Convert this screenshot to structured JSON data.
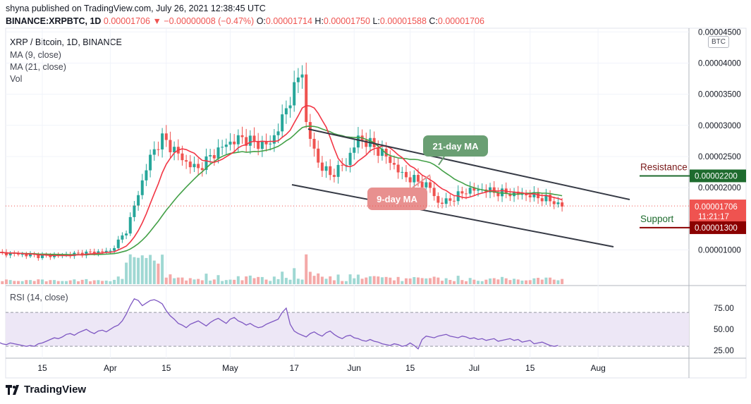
{
  "header": {
    "published": "shyna published on TradingView.com, July 26, 2021 12:38:45 UTC",
    "symbol": "BINANCE:XRPBTC, 1D",
    "last": "0.00001706",
    "change": "−0.00000008 (−0.47%)",
    "o_label": "O:",
    "o": "0.00001714",
    "h_label": "H:",
    "h": "0.00001750",
    "l_label": "L:",
    "l": "0.00001588",
    "c_label": "C:",
    "c": "0.00001706",
    "down_arrow": "▼"
  },
  "legend": {
    "title": "XRP / Bitcoin, 1D, BINANCE",
    "ma9": "MA (9, close)",
    "ma21": "MA (21, close)",
    "vol": "Vol"
  },
  "rsi_label": "RSI (14, close)",
  "currency_badge": "BTC",
  "footer": {
    "brand": "TradingView"
  },
  "colors": {
    "up": "#26a69a",
    "down": "#ef5350",
    "ma9": "#f23645",
    "ma21": "#43a047",
    "rsi": "#7e57c2",
    "rsi_band": "#ede7f6",
    "channel": "#363a45"
  },
  "chart_data": {
    "type": "candlestick",
    "title": "XRP / Bitcoin, 1D, BINANCE",
    "y_axis": {
      "ticks": [
        "0.00004500",
        "0.00004000",
        "0.00003500",
        "0.00003000",
        "0.00002500",
        "0.00002000",
        "0.00001000"
      ],
      "tick_values": [
        4.5e-05,
        4e-05,
        3.5e-05,
        3e-05,
        2.5e-05,
        2e-05,
        1e-05
      ],
      "range": [
        4.5e-06,
        4.56e-05
      ]
    },
    "x_axis": {
      "ticks": [
        "15",
        "Apr",
        "15",
        "May",
        "17",
        "Jun",
        "15",
        "Jul",
        "15",
        "Aug"
      ],
      "tick_day_index": [
        14,
        31,
        45,
        61,
        77,
        92,
        106,
        122,
        136,
        153
      ]
    },
    "price_label": {
      "value": "0.00001706",
      "countdown": "11:21:17"
    },
    "annotations": {
      "resistance": {
        "text": "Resistance",
        "value": "0.00002200"
      },
      "support": {
        "text": "Support",
        "value": "0.00001300"
      },
      "ma21_callout": "21-day MA",
      "ma9_callout": "9-day MA"
    },
    "rsi": {
      "ticks": [
        "75.00",
        "50.00",
        "25.00"
      ],
      "tick_values": [
        75,
        50,
        25
      ],
      "band": [
        30,
        70
      ],
      "range": [
        16,
        100
      ],
      "values": [
        38,
        37,
        36,
        35,
        33,
        32,
        34,
        33,
        32,
        31,
        30,
        31,
        30,
        33,
        34,
        36,
        38,
        40,
        39,
        41,
        44,
        45,
        43,
        46,
        48,
        50,
        47,
        45,
        48,
        49,
        47,
        50,
        53,
        55,
        60,
        68,
        78,
        86,
        84,
        78,
        81,
        84,
        85,
        83,
        80,
        72,
        66,
        62,
        57,
        55,
        52,
        56,
        58,
        60,
        57,
        54,
        58,
        61,
        63,
        60,
        57,
        62,
        64,
        60,
        58,
        55,
        57,
        54,
        52,
        53,
        56,
        58,
        60,
        62,
        70,
        75,
        56,
        48,
        45,
        43,
        41,
        45,
        47,
        44,
        42,
        46,
        48,
        44,
        41,
        39,
        42,
        43,
        40,
        39,
        37,
        36,
        38,
        36,
        35,
        33,
        32,
        31,
        33,
        32,
        30,
        31,
        34,
        31,
        27,
        38,
        42,
        41,
        40,
        42,
        43,
        44,
        42,
        41,
        40,
        42,
        41,
        39,
        40,
        38,
        39,
        37,
        38,
        39,
        36,
        37,
        38,
        39,
        37,
        38,
        35,
        36,
        37,
        33,
        34,
        35,
        33,
        31,
        30,
        31
      ]
    },
    "candles_summary": "Daily XRPBTC candles Mar 2021 – Jul 26 2021, rise from ~0.0000090 to peak ~0.0000390 (mid-May) then descending channel to 0.00001706"
  }
}
